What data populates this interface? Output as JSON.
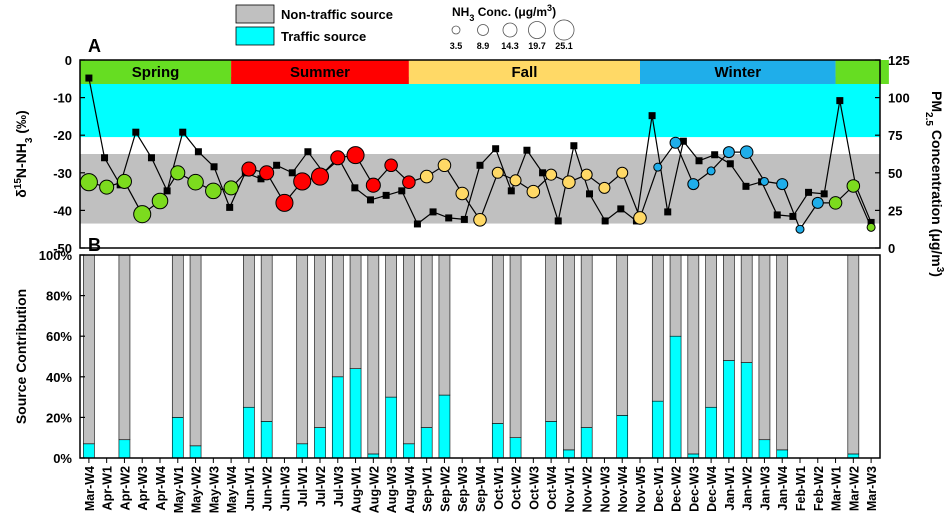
{
  "chart_data": [
    {
      "panel_label": "A",
      "type": "scatter",
      "categories": [
        "Mar-W4",
        "Apr-W1",
        "Apr-W2",
        "Apr-W3",
        "Apr-W4",
        "May-W1",
        "May-W2",
        "May-W3",
        "May-W4",
        "Jun-W1",
        "Jun-W2",
        "Jun-W3",
        "Jul-W1",
        "Jul-W2",
        "Jul-W3",
        "Aug-W1",
        "Aug-W2",
        "Aug-W3",
        "Aug-W4",
        "Sep-W1",
        "Sep-W2",
        "Sep-W3",
        "Sep-W4",
        "Oct-W1",
        "Oct-W2",
        "Oct-W3",
        "Oct-W4",
        "Nov-W1",
        "Nov-W2",
        "Nov-W3",
        "Nov-W4",
        "Nov-W5",
        "Dec-W1",
        "Dec-W2",
        "Dec-W3",
        "Dec-W4",
        "Jan-W1",
        "Jan-W2",
        "Jan-W3",
        "Jan-W4",
        "Feb-W1",
        "Feb-W2",
        "Mar-W1",
        "Mar-W2",
        "Mar-W3"
      ],
      "ylabel_left": "δ15N-NH3 (‰)",
      "ylabel_left_parts": [
        "δ",
        "15",
        "N-NH",
        "3",
        "  (‰)"
      ],
      "ylabel_right": "PM2.5 Concentration (μg/m3)",
      "ylabel_right_parts": [
        "PM",
        "2.5",
        " Concentration (μg/m",
        "3",
        ")"
      ],
      "ylim_left": [
        -50,
        0
      ],
      "yticks_left": [
        0,
        -10,
        -20,
        -30,
        -40,
        -50
      ],
      "ylim_right": [
        0,
        125
      ],
      "yticks_right": [
        0,
        25,
        50,
        75,
        100,
        125
      ],
      "source_bands": [
        {
          "name": "Traffic source",
          "range": [
            -20.5,
            -4.5
          ],
          "color": "#00FFFF"
        },
        {
          "name": "Non-traffic source",
          "range": [
            -43.5,
            -25
          ],
          "color": "#C0C0C0"
        }
      ],
      "seasons": [
        {
          "name": "Spring",
          "start": 0,
          "end": 8.5,
          "color": "#66DD22"
        },
        {
          "name": "Summer",
          "start": 8.5,
          "end": 18.5,
          "color": "#FF0000"
        },
        {
          "name": "Fall",
          "start": 18.5,
          "end": 31.5,
          "color": "#FFD966"
        },
        {
          "name": "Winter",
          "start": 31.5,
          "end": 42.5,
          "color": "#1FAEEA"
        },
        {
          "name": "",
          "start": 42.5,
          "end": 45.5,
          "color": "#66DD22"
        }
      ],
      "nh3_legend": {
        "title": "NH3 Conc. (μg/m3)",
        "title_parts": [
          "NH",
          "3",
          "  Conc.   (μg/m",
          "3",
          ")"
        ],
        "values": [
          3.5,
          8.9,
          14.3,
          19.7,
          25.1
        ],
        "value_labels": [
          "3.5",
          "8.9",
          "14.3",
          "19.7",
          "25.1"
        ]
      },
      "d15n_series": [
        {
          "x": "Mar-W4",
          "d15n": -32.5,
          "nh3": 19.7,
          "season": "Spring"
        },
        {
          "x": "Apr-W1",
          "d15n": -33.8,
          "nh3": 14.3,
          "season": "Spring"
        },
        {
          "x": "Apr-W2",
          "d15n": -32.3,
          "nh3": 14.3,
          "season": "Spring"
        },
        {
          "x": "Apr-W3",
          "d15n": -41.0,
          "nh3": 19.7,
          "season": "Spring"
        },
        {
          "x": "Apr-W4",
          "d15n": -37.5,
          "nh3": 17.0,
          "season": "Spring"
        },
        {
          "x": "May-W1",
          "d15n": -30.0,
          "nh3": 14.3,
          "season": "Spring"
        },
        {
          "x": "May-W2",
          "d15n": -32.5,
          "nh3": 17.0,
          "season": "Spring"
        },
        {
          "x": "May-W3",
          "d15n": -34.8,
          "nh3": 17.0,
          "season": "Spring"
        },
        {
          "x": "May-W4",
          "d15n": -34.0,
          "nh3": 14.3,
          "season": "Spring"
        },
        {
          "x": "Jun-W1",
          "d15n": -29.0,
          "nh3": 14.3,
          "season": "Summer"
        },
        {
          "x": "Jun-W2",
          "d15n": -30.0,
          "nh3": 14.3,
          "season": "Summer"
        },
        {
          "x": "Jun-W3",
          "d15n": -38.0,
          "nh3": 19.7,
          "season": "Summer"
        },
        {
          "x": "Jul-W1",
          "d15n": -32.3,
          "nh3": 19.7,
          "season": "Summer"
        },
        {
          "x": "Jul-W2",
          "d15n": -31.0,
          "nh3": 19.7,
          "season": "Summer"
        },
        {
          "x": "Jul-W3",
          "d15n": -26.0,
          "nh3": 14.3,
          "season": "Summer"
        },
        {
          "x": "Aug-W1",
          "d15n": -25.3,
          "nh3": 19.7,
          "season": "Summer"
        },
        {
          "x": "Aug-W2",
          "d15n": -33.3,
          "nh3": 14.3,
          "season": "Summer"
        },
        {
          "x": "Aug-W3",
          "d15n": -28.0,
          "nh3": 11.6,
          "season": "Summer"
        },
        {
          "x": "Aug-W4",
          "d15n": -32.5,
          "nh3": 11.6,
          "season": "Summer"
        },
        {
          "x": "Sep-W1",
          "d15n": -31.0,
          "nh3": 11.6,
          "season": "Fall"
        },
        {
          "x": "Sep-W2",
          "d15n": -28.0,
          "nh3": 11.6,
          "season": "Fall"
        },
        {
          "x": "Sep-W3",
          "d15n": -35.5,
          "nh3": 11.6,
          "season": "Fall"
        },
        {
          "x": "Sep-W4",
          "d15n": -42.5,
          "nh3": 11.6,
          "season": "Fall"
        },
        {
          "x": "Oct-W1",
          "d15n": -30.0,
          "nh3": 8.9,
          "season": "Fall"
        },
        {
          "x": "Oct-W2",
          "d15n": -32.0,
          "nh3": 8.9,
          "season": "Fall"
        },
        {
          "x": "Oct-W3",
          "d15n": -35.0,
          "nh3": 11.6,
          "season": "Fall"
        },
        {
          "x": "Oct-W4",
          "d15n": -30.5,
          "nh3": 8.9,
          "season": "Fall"
        },
        {
          "x": "Nov-W1",
          "d15n": -32.5,
          "nh3": 11.6,
          "season": "Fall"
        },
        {
          "x": "Nov-W2",
          "d15n": -30.5,
          "nh3": 8.9,
          "season": "Fall"
        },
        {
          "x": "Nov-W3",
          "d15n": -34.0,
          "nh3": 8.9,
          "season": "Fall"
        },
        {
          "x": "Nov-W4",
          "d15n": -30.0,
          "nh3": 8.9,
          "season": "Fall"
        },
        {
          "x": "Nov-W5",
          "d15n": -42.0,
          "nh3": 11.6,
          "season": "Fall"
        },
        {
          "x": "Dec-W1",
          "d15n": -28.5,
          "nh3": 3.5,
          "season": "Winter"
        },
        {
          "x": "Dec-W2",
          "d15n": -22.0,
          "nh3": 8.9,
          "season": "Winter"
        },
        {
          "x": "Dec-W3",
          "d15n": -33.0,
          "nh3": 8.9,
          "season": "Winter"
        },
        {
          "x": "Dec-W4",
          "d15n": -29.5,
          "nh3": 3.5,
          "season": "Winter"
        },
        {
          "x": "Jan-W1",
          "d15n": -24.5,
          "nh3": 8.9,
          "season": "Winter"
        },
        {
          "x": "Jan-W2",
          "d15n": -24.5,
          "nh3": 11.6,
          "season": "Winter"
        },
        {
          "x": "Jan-W3",
          "d15n": -32.3,
          "nh3": 3.5,
          "season": "Winter"
        },
        {
          "x": "Jan-W4",
          "d15n": -33.0,
          "nh3": 8.9,
          "season": "Winter"
        },
        {
          "x": "Feb-W1",
          "d15n": -45.0,
          "nh3": 3.5,
          "season": "Winter"
        },
        {
          "x": "Feb-W2",
          "d15n": -38.0,
          "nh3": 8.9,
          "season": "Winter"
        },
        {
          "x": "Mar-W1",
          "d15n": -38.0,
          "nh3": 11.6,
          "season": "Spring"
        },
        {
          "x": "Mar-W2",
          "d15n": -33.5,
          "nh3": 11.6,
          "season": "Spring"
        },
        {
          "x": "Mar-W3",
          "d15n": -44.5,
          "nh3": 3.5,
          "season": "Spring"
        }
      ],
      "pm25_series": {
        "name": "PM2.5",
        "values": [
          113,
          60,
          42,
          77,
          60,
          38,
          77,
          64,
          54,
          27,
          50,
          46,
          55,
          50,
          64,
          50,
          59,
          40,
          32,
          35,
          38,
          16,
          24,
          20,
          19,
          55,
          66,
          38,
          65,
          50,
          18,
          68,
          36,
          18,
          26,
          18,
          88,
          24,
          71,
          58,
          62,
          56,
          41,
          44,
          22,
          21,
          37,
          36,
          98,
          42,
          17
        ]
      }
    },
    {
      "panel_label": "B",
      "type": "bar",
      "stacked": true,
      "ylabel": "Source Contribution",
      "ylim": [
        0,
        100
      ],
      "yticks": [
        0,
        20,
        40,
        60,
        80,
        100
      ],
      "ytick_labels": [
        "0%",
        "20%",
        "40%",
        "60%",
        "80%",
        "100%"
      ],
      "categories": [
        "Mar-W4",
        "Apr-W1",
        "Apr-W2",
        "Apr-W3",
        "Apr-W4",
        "May-W1",
        "May-W2",
        "May-W3",
        "May-W4",
        "Jun-W1",
        "Jun-W2",
        "Jun-W3",
        "Jul-W1",
        "Jul-W2",
        "Jul-W3",
        "Aug-W1",
        "Aug-W2",
        "Aug-W3",
        "Aug-W4",
        "Sep-W1",
        "Sep-W2",
        "Sep-W3",
        "Sep-W4",
        "Oct-W1",
        "Oct-W2",
        "Oct-W3",
        "Oct-W4",
        "Nov-W1",
        "Nov-W2",
        "Nov-W3",
        "Nov-W4",
        "Nov-W5",
        "Dec-W1",
        "Dec-W2",
        "Dec-W3",
        "Dec-W4",
        "Jan-W1",
        "Jan-W2",
        "Jan-W3",
        "Jan-W4",
        "Feb-W1",
        "Feb-W2",
        "Mar-W1",
        "Mar-W2",
        "Mar-W3"
      ],
      "series": [
        {
          "name": "Traffic source",
          "color": "#00FFFF",
          "values": [
            7,
            null,
            9,
            null,
            null,
            20,
            6,
            null,
            null,
            25,
            18,
            null,
            7,
            15,
            40,
            44,
            2,
            30,
            7,
            15,
            31,
            null,
            null,
            17,
            10,
            null,
            18,
            4,
            15,
            null,
            21,
            null,
            28,
            60,
            2,
            25,
            48,
            47,
            9,
            4,
            null,
            null,
            null,
            2,
            null
          ]
        },
        {
          "name": "Non-traffic source",
          "color": "#C0C0C0",
          "values": [
            93,
            null,
            91,
            null,
            null,
            80,
            94,
            null,
            null,
            75,
            82,
            null,
            93,
            85,
            60,
            56,
            98,
            70,
            93,
            85,
            69,
            null,
            null,
            83,
            90,
            null,
            82,
            96,
            85,
            null,
            79,
            null,
            72,
            40,
            98,
            75,
            52,
            53,
            91,
            96,
            null,
            null,
            null,
            98,
            null
          ]
        }
      ]
    }
  ],
  "legend": {
    "items": [
      {
        "label": "Non-traffic source",
        "color": "#C0C0C0"
      },
      {
        "label": "Traffic source",
        "color": "#00FFFF"
      }
    ]
  }
}
